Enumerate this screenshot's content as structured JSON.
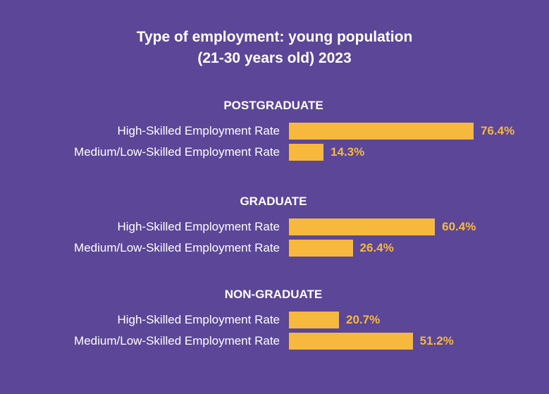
{
  "chart_data": {
    "type": "bar",
    "orientation": "horizontal",
    "title_line1": "Type of employment: young population",
    "title_line2": "(21-30 years old) 2023",
    "value_suffix": "%",
    "xlim": [
      0,
      100
    ],
    "grid": false,
    "bar_color": "#f6b93e",
    "label_color": "#f6b93e",
    "background_color": "#5b4697",
    "groups": [
      {
        "name": "POSTGRADUATE",
        "categories": [
          "High-Skilled Employment Rate",
          "Medium/Low-Skilled Employment Rate"
        ],
        "values": [
          76.4,
          14.3
        ]
      },
      {
        "name": "GRADUATE",
        "categories": [
          "High-Skilled Employment Rate",
          "Medium/Low-Skilled Employment Rate"
        ],
        "values": [
          60.4,
          26.4
        ]
      },
      {
        "name": "NON-GRADUATE",
        "categories": [
          "High-Skilled Employment Rate",
          "Medium/Low-Skilled Employment Rate"
        ],
        "values": [
          20.7,
          51.2
        ]
      }
    ]
  }
}
